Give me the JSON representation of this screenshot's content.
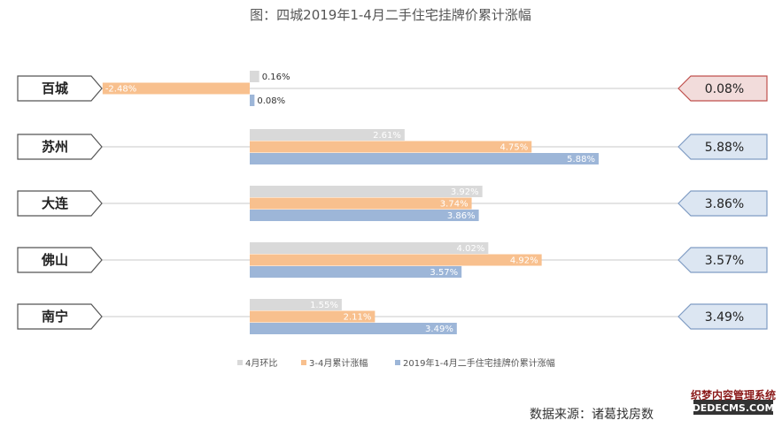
{
  "chart_data": {
    "type": "bar",
    "title": "图：四城2019年1-4月二手住宅挂牌价累计涨幅",
    "categories": [
      "百城",
      "苏州",
      "大连",
      "佛山",
      "南宁"
    ],
    "series": [
      {
        "name": "4月环比",
        "values": [
          0.16,
          2.61,
          3.92,
          4.02,
          1.55
        ],
        "labels": [
          "0.16%",
          "2.61%",
          "3.92%",
          "4.02%",
          "1.55%"
        ],
        "color": "#d9d9d9"
      },
      {
        "name": "3-4月累计涨幅",
        "values": [
          -2.48,
          4.75,
          3.74,
          4.92,
          2.11
        ],
        "labels": [
          "-2.48%",
          "4.75%",
          "3.74%",
          "4.92%",
          "2.11%"
        ],
        "color": "#f8c08e"
      },
      {
        "name": "2019年1-4月二手住宅挂牌价累计涨幅",
        "values": [
          0.08,
          5.88,
          3.86,
          3.57,
          3.49
        ],
        "labels": [
          "0.08%",
          "5.88%",
          "3.86%",
          "3.57%",
          "3.49%"
        ],
        "color": "#9db6d8"
      }
    ],
    "callouts": [
      "0.08%",
      "5.88%",
      "3.86%",
      "3.57%",
      "3.49%"
    ],
    "legend_position": "bottom",
    "grid": false
  },
  "source": "数据来源：诸葛找房数",
  "watermark": {
    "line1": "织梦内容管理系统",
    "line2": "DEDECMS.COM"
  },
  "colors": {
    "callout_highlight_fill": "#f2dcdb",
    "callout_highlight_stroke": "#c0504d",
    "callout_fill": "#dce6f2",
    "callout_stroke": "#7f9cc4",
    "highlight_text": "#8b1a1a"
  }
}
